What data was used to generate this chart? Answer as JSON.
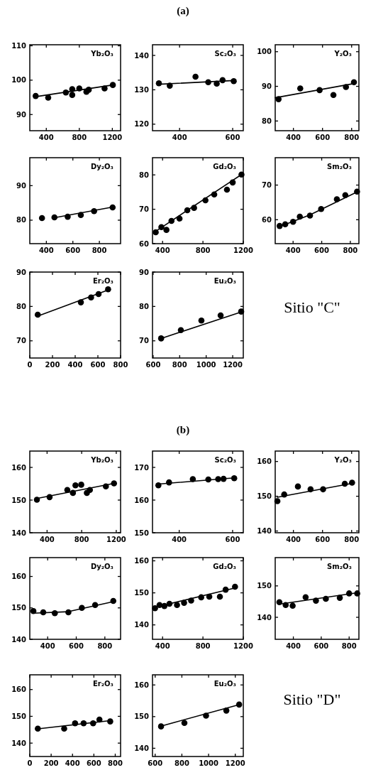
{
  "chart_data": [
    {
      "type": "other",
      "title": "(a)"
    },
    {
      "type": "scatter",
      "title": "Yb₂O₃",
      "xlim": [
        200,
        1300
      ],
      "xticks": [
        400,
        800,
        1200
      ],
      "ylim": [
        85.3,
        110.3
      ],
      "yticks": [
        90,
        100,
        110
      ],
      "series": [
        {
          "type": "scatter",
          "marker": "circle",
          "color": "#000000",
          "x": [
            271,
            423,
            637,
            714,
            714,
            800,
            886,
            914,
            1106,
            1206
          ],
          "values": [
            95.4,
            94.9,
            96.4,
            97.4,
            95.7,
            97.6,
            96.6,
            97.2,
            97.6,
            98.6
          ]
        },
        {
          "type": "line",
          "color": "#000000",
          "x": [
            271,
            1206
          ],
          "values": [
            95.2,
            98.6
          ]
        }
      ]
    },
    {
      "type": "scatter",
      "title": "Sc₂O₃",
      "xlim": [
        298,
        640
      ],
      "xticks": [
        400,
        600
      ],
      "ylim": [
        118.1,
        143.1
      ],
      "yticks": [
        120,
        130,
        140
      ],
      "series": [
        {
          "type": "scatter",
          "marker": "circle",
          "color": "#000000",
          "x": [
            322,
            363,
            460,
            508,
            540,
            562,
            604
          ],
          "values": [
            131.9,
            131.2,
            133.8,
            132.2,
            131.8,
            132.8,
            132.5
          ]
        },
        {
          "type": "line",
          "color": "#000000",
          "x": [
            322,
            604
          ],
          "values": [
            131.6,
            132.7
          ]
        }
      ]
    },
    {
      "type": "scatter",
      "title": "Y₂O₃",
      "xlim": [
        275,
        850
      ],
      "xticks": [
        400,
        600,
        800
      ],
      "ylim": [
        77.2,
        102
      ],
      "yticks": [
        80,
        90,
        100
      ],
      "series": [
        {
          "type": "scatter",
          "marker": "circle",
          "color": "#000000",
          "x": [
            298,
            447,
            580,
            675,
            761,
            816
          ],
          "values": [
            86.3,
            89.4,
            88.9,
            87.5,
            89.8,
            91.2
          ]
        },
        {
          "type": "line",
          "color": "#000000",
          "x": [
            275,
            816
          ],
          "values": [
            86.7,
            90.8
          ]
        }
      ]
    },
    {
      "type": "scatter",
      "title": "Dy₂O₃",
      "xlim": [
        275,
        960
      ],
      "xticks": [
        400,
        600,
        800
      ],
      "ylim": [
        73.2,
        98.1
      ],
      "yticks": [
        80,
        90
      ],
      "series": [
        {
          "type": "scatter",
          "marker": "circle",
          "color": "#000000",
          "x": [
            367,
            461,
            561,
            660,
            760,
            900
          ],
          "values": [
            80.6,
            80.8,
            81.0,
            81.5,
            82.6,
            83.7
          ]
        },
        {
          "type": "line",
          "color": "#000000",
          "x": [
            461,
            900
          ],
          "values": [
            80.7,
            83.8
          ]
        }
      ]
    },
    {
      "type": "scatter",
      "title": "Gd₂O₃",
      "xlim": [
        300,
        1200
      ],
      "xticks": [
        400,
        800,
        1200
      ],
      "ylim": [
        60,
        85
      ],
      "yticks": [
        60,
        70,
        80
      ],
      "series": [
        {
          "type": "scatter",
          "marker": "circle",
          "color": "#000000",
          "x": [
            332,
            388,
            438,
            488,
            568,
            645,
            712,
            825,
            912,
            1038,
            1095,
            1182
          ],
          "values": [
            63.3,
            64.8,
            64.0,
            66.6,
            67.3,
            69.7,
            70.4,
            72.6,
            74.3,
            75.7,
            77.8,
            80.1
          ]
        },
        {
          "type": "line",
          "color": "#000000",
          "x": [
            332,
            1182
          ],
          "values": [
            63.6,
            80.1
          ]
        }
      ]
    },
    {
      "type": "scatter",
      "title": "Sm₂O₃",
      "xlim": [
        275,
        860
      ],
      "xticks": [
        400,
        600,
        800
      ],
      "ylim": [
        53.1,
        77.9
      ],
      "yticks": [
        60,
        70
      ],
      "series": [
        {
          "type": "scatter",
          "marker": "circle",
          "color": "#000000",
          "x": [
            306,
            345,
            400,
            447,
            518,
            596,
            706,
            765,
            847
          ],
          "values": [
            58.2,
            58.7,
            59.4,
            60.9,
            61.2,
            63.1,
            65.9,
            67.1,
            68.1
          ]
        },
        {
          "type": "line",
          "color": "#000000",
          "x": [
            306,
            518,
            847
          ],
          "values": [
            58.0,
            61.4,
            68.0
          ]
        }
      ]
    },
    {
      "type": "scatter",
      "title": "Er₂O₃",
      "xlim": [
        0,
        800
      ],
      "xticks": [
        0,
        200,
        400,
        600,
        800
      ],
      "ylim": [
        65,
        90
      ],
      "yticks": [
        70,
        80,
        90
      ],
      "series": [
        {
          "type": "scatter",
          "marker": "circle",
          "color": "#000000",
          "x": [
            70,
            450,
            540,
            606,
            690
          ],
          "values": [
            77.6,
            81.2,
            82.6,
            83.6,
            85.0
          ]
        },
        {
          "type": "line",
          "color": "#000000",
          "x": [
            70,
            690
          ],
          "values": [
            77.2,
            84.8
          ]
        }
      ]
    },
    {
      "type": "scatter",
      "title": "Eu₂O₃",
      "xlim": [
        595,
        1280
      ],
      "xticks": [
        600,
        800,
        1000,
        1200
      ],
      "ylim": [
        65,
        90
      ],
      "yticks": [
        70,
        80,
        90
      ],
      "series": [
        {
          "type": "scatter",
          "marker": "circle",
          "color": "#000000",
          "x": [
            660,
            809,
            964,
            1109,
            1264
          ],
          "values": [
            70.7,
            73.1,
            75.9,
            77.4,
            78.5
          ]
        },
        {
          "type": "line",
          "color": "#000000",
          "x": [
            660,
            1264
          ],
          "values": [
            70.7,
            78.4
          ]
        }
      ]
    },
    {
      "type": "other",
      "title": "Sitio \"C\""
    },
    {
      "type": "other",
      "title": "(b)"
    },
    {
      "type": "scatter",
      "title": "Yb₂O₃",
      "xlim": [
        200,
        1250
      ],
      "xticks": [
        400,
        800,
        1200
      ],
      "ylim": [
        140,
        165
      ],
      "yticks": [
        140,
        150,
        160
      ],
      "series": [
        {
          "type": "scatter",
          "marker": "circle",
          "color": "#000000",
          "x": [
            282,
            429,
            634,
            699,
            728,
            795,
            860,
            895,
            1080,
            1174
          ],
          "values": [
            150.1,
            150.9,
            153.1,
            152.2,
            154.5,
            154.7,
            152.2,
            153.1,
            154.2,
            155.1
          ]
        },
        {
          "type": "line",
          "color": "#000000",
          "x": [
            282,
            1174
          ],
          "values": [
            150.5,
            155.1
          ]
        }
      ]
    },
    {
      "type": "scatter",
      "title": "Sc₂O₃",
      "xlim": [
        300,
        640
      ],
      "xticks": [
        400,
        600
      ],
      "ylim": [
        150,
        175
      ],
      "yticks": [
        150,
        160,
        170
      ],
      "series": [
        {
          "type": "scatter",
          "marker": "circle",
          "color": "#000000",
          "x": [
            322,
            362,
            451,
            509,
            546,
            566,
            606
          ],
          "values": [
            164.5,
            165.4,
            166.4,
            166.3,
            166.4,
            166.5,
            166.7
          ]
        },
        {
          "type": "line",
          "color": "#000000",
          "x": [
            322,
            606
          ],
          "values": [
            164.9,
            166.8
          ]
        }
      ]
    },
    {
      "type": "scatter",
      "title": "Y₂O₃",
      "xlim": [
        275,
        850
      ],
      "xticks": [
        400,
        600,
        800
      ],
      "ylim": [
        139.5,
        163
      ],
      "yticks": [
        140,
        150,
        160
      ],
      "series": [
        {
          "type": "scatter",
          "marker": "circle",
          "color": "#000000",
          "x": [
            290,
            337,
            431,
            518,
            604,
            753,
            803
          ],
          "values": [
            148.6,
            150.5,
            152.8,
            152.0,
            152.0,
            153.6,
            153.9
          ]
        },
        {
          "type": "line",
          "color": "#000000",
          "x": [
            290,
            803
          ],
          "values": [
            149.7,
            153.7
          ]
        }
      ]
    },
    {
      "type": "scatter",
      "title": "Dy₂O₃",
      "xlim": [
        275,
        910
      ],
      "xticks": [
        400,
        600,
        800
      ],
      "ylim": [
        140,
        166
      ],
      "yticks": [
        140,
        150,
        160
      ],
      "series": [
        {
          "type": "scatter",
          "marker": "circle",
          "color": "#000000",
          "x": [
            300,
            369,
            450,
            545,
            639,
            732,
            859
          ],
          "values": [
            149.0,
            148.6,
            148.3,
            148.6,
            150.0,
            150.9,
            152.2
          ]
        },
        {
          "type": "line",
          "color": "#000000",
          "x": [
            300,
            545,
            859
          ],
          "values": [
            148.3,
            148.8,
            152.0
          ]
        }
      ]
    },
    {
      "type": "scatter",
      "title": "Gd₂O₃",
      "xlim": [
        300,
        1200
      ],
      "xticks": [
        400,
        800,
        1200
      ],
      "ylim": [
        135.5,
        161
      ],
      "yticks": [
        140,
        150,
        160
      ],
      "series": [
        {
          "type": "scatter",
          "marker": "circle",
          "color": "#000000",
          "x": [
            325,
            370,
            418,
            468,
            543,
            613,
            683,
            783,
            863,
            968,
            1025,
            1118
          ],
          "values": [
            145.2,
            146.2,
            145.9,
            146.6,
            146.2,
            146.9,
            147.6,
            148.6,
            148.8,
            148.8,
            151.0,
            151.9
          ]
        },
        {
          "type": "line",
          "color": "#000000",
          "x": [
            325,
            1118
          ],
          "values": [
            145.5,
            151.5
          ]
        }
      ]
    },
    {
      "type": "scatter",
      "title": "Sm₂O₃",
      "xlim": [
        270,
        870
      ],
      "xticks": [
        400,
        600,
        800
      ],
      "ylim": [
        133,
        159
      ],
      "yticks": [
        140,
        150
      ],
      "series": [
        {
          "type": "scatter",
          "marker": "circle",
          "color": "#000000",
          "x": [
            300,
            345,
            395,
            488,
            562,
            633,
            733,
            800,
            858
          ],
          "values": [
            144.8,
            143.9,
            143.7,
            146.4,
            145.3,
            145.9,
            146.2,
            147.6,
            147.6
          ]
        },
        {
          "type": "line",
          "color": "#000000",
          "x": [
            300,
            858
          ],
          "values": [
            144.2,
            147.8
          ]
        }
      ]
    },
    {
      "type": "scatter",
      "title": "Er₂O₃",
      "xlim": [
        0,
        850
      ],
      "xticks": [
        0,
        200,
        400,
        600,
        800
      ],
      "ylim": [
        135,
        165.5
      ],
      "yticks": [
        140,
        150,
        160
      ],
      "series": [
        {
          "type": "scatter",
          "marker": "circle",
          "color": "#000000",
          "x": [
            75,
            322,
            424,
            504,
            593,
            652,
            753
          ],
          "values": [
            145.4,
            145.4,
            147.4,
            147.4,
            147.4,
            148.8,
            148.1
          ]
        },
        {
          "type": "line",
          "color": "#000000",
          "x": [
            94,
            753
          ],
          "values": [
            145.4,
            148.4
          ]
        }
      ]
    },
    {
      "type": "scatter",
      "title": "Eu₂O₃",
      "xlim": [
        580,
        1260
      ],
      "xticks": [
        600,
        800,
        1000,
        1200
      ],
      "ylim": [
        137.4,
        163.2
      ],
      "yticks": [
        140,
        150,
        160
      ],
      "series": [
        {
          "type": "scatter",
          "marker": "circle",
          "color": "#000000",
          "x": [
            644,
            819,
            981,
            1133,
            1229
          ],
          "values": [
            146.9,
            148.0,
            150.3,
            151.9,
            153.8
          ]
        },
        {
          "type": "line",
          "color": "#000000",
          "x": [
            644,
            1229
          ],
          "values": [
            147.0,
            153.8
          ]
        }
      ]
    },
    {
      "type": "other",
      "title": "Sitio \"D\""
    }
  ]
}
